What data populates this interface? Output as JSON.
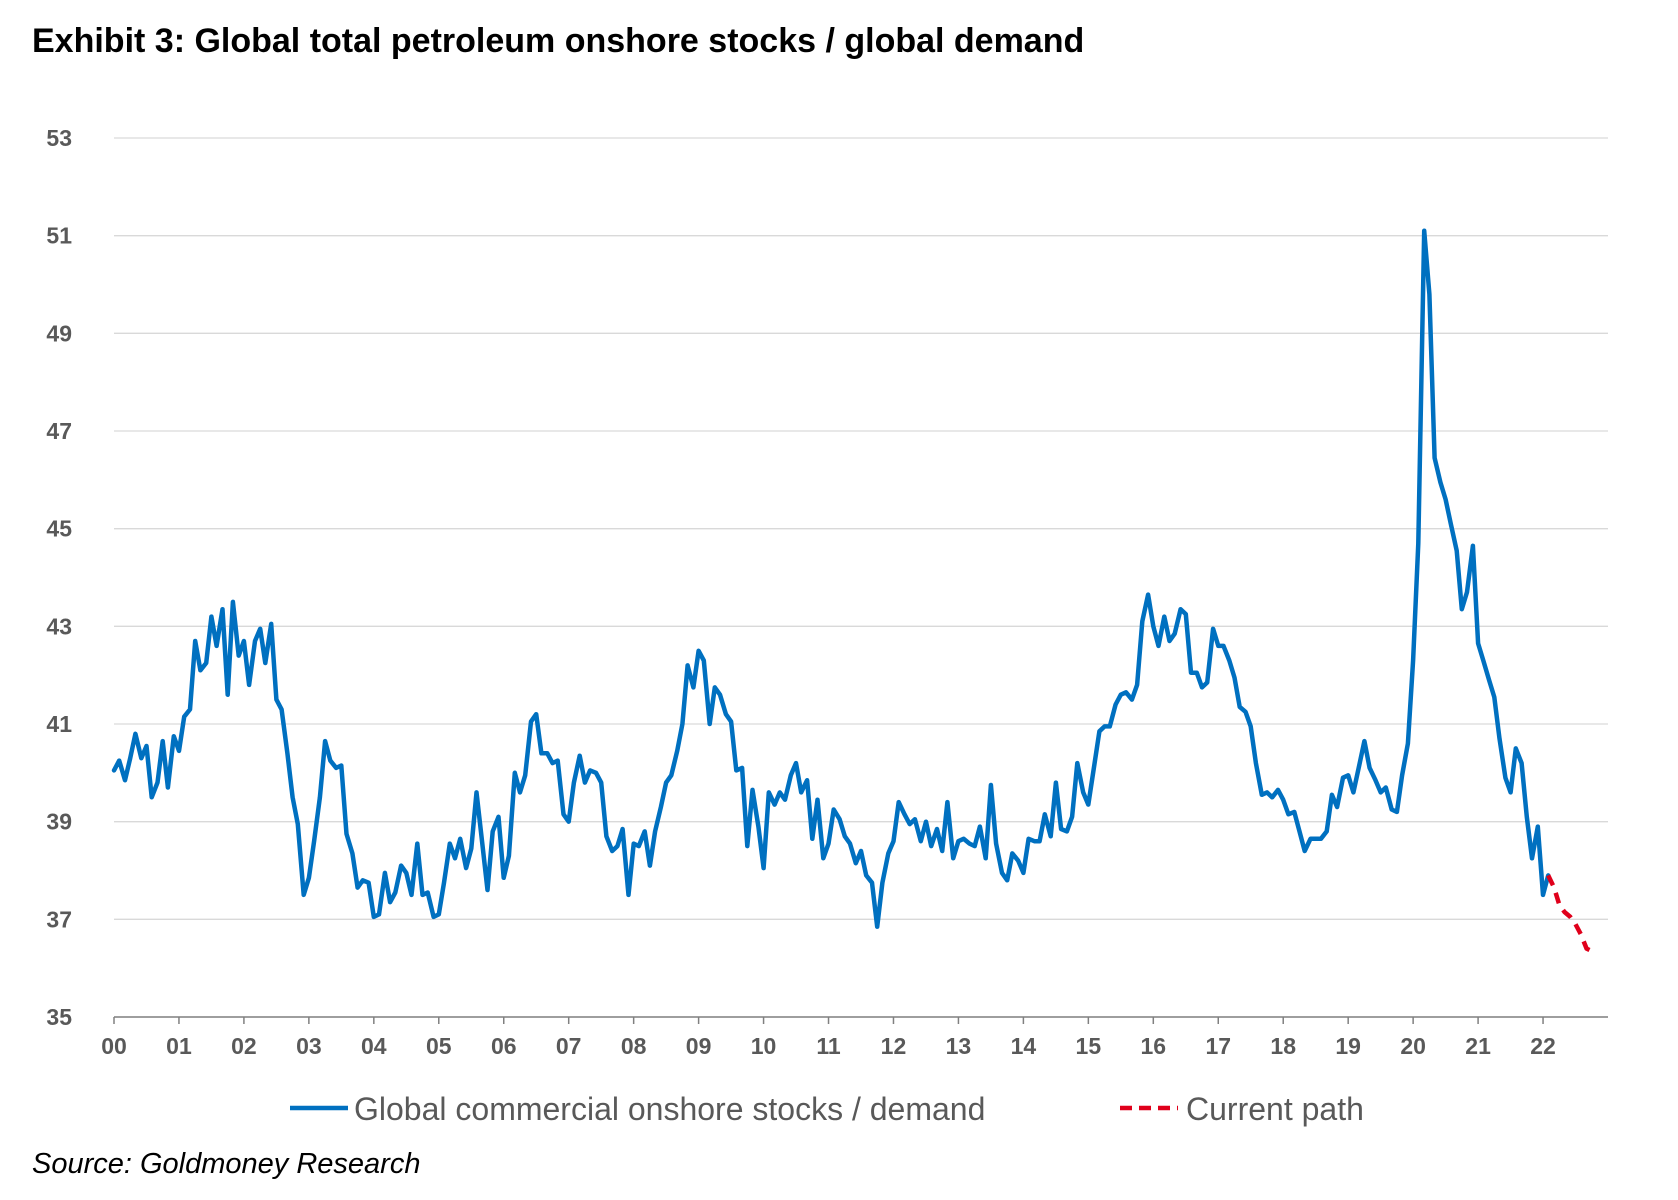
{
  "title": "Exhibit 3: Global total petroleum onshore stocks / global demand",
  "source": "Source: Goldmoney Research",
  "colors": {
    "series1": "#0070C0",
    "series2": "#E0001B",
    "grid": "#d9d9d9",
    "tick_text": "#595959"
  },
  "chart_data": {
    "type": "line",
    "title": "Exhibit 3: Global total petroleum onshore stocks / global demand",
    "xlabel": "",
    "ylabel": "",
    "ylim": [
      35,
      53
    ],
    "xlim": [
      0,
      23
    ],
    "yticks": [
      35,
      37,
      39,
      41,
      43,
      45,
      47,
      49,
      51,
      53
    ],
    "xticks": [
      "00",
      "01",
      "02",
      "03",
      "04",
      "05",
      "06",
      "07",
      "08",
      "09",
      "10",
      "11",
      "12",
      "13",
      "14",
      "15",
      "16",
      "17",
      "18",
      "19",
      "20",
      "21",
      "22"
    ],
    "grid": "horizontal",
    "legend_position": "bottom",
    "series": [
      {
        "name": "Global commercial onshore stocks / demand",
        "style": "solid",
        "color": "#0070C0",
        "points": [
          [
            0.0,
            40.05
          ],
          [
            0.08,
            40.25
          ],
          [
            0.17,
            39.85
          ],
          [
            0.25,
            40.3
          ],
          [
            0.33,
            40.8
          ],
          [
            0.42,
            40.3
          ],
          [
            0.5,
            40.55
          ],
          [
            0.58,
            39.5
          ],
          [
            0.67,
            39.8
          ],
          [
            0.75,
            40.65
          ],
          [
            0.83,
            39.7
          ],
          [
            0.92,
            40.75
          ],
          [
            1.0,
            40.45
          ],
          [
            1.08,
            41.15
          ],
          [
            1.17,
            41.3
          ],
          [
            1.25,
            42.7
          ],
          [
            1.33,
            42.1
          ],
          [
            1.42,
            42.25
          ],
          [
            1.5,
            43.2
          ],
          [
            1.58,
            42.6
          ],
          [
            1.67,
            43.35
          ],
          [
            1.75,
            41.6
          ],
          [
            1.83,
            43.5
          ],
          [
            1.92,
            42.4
          ],
          [
            2.0,
            42.7
          ],
          [
            2.08,
            41.8
          ],
          [
            2.17,
            42.7
          ],
          [
            2.25,
            42.95
          ],
          [
            2.33,
            42.25
          ],
          [
            2.42,
            43.05
          ],
          [
            2.5,
            41.5
          ],
          [
            2.58,
            41.3
          ],
          [
            2.67,
            40.4
          ],
          [
            2.75,
            39.5
          ],
          [
            2.83,
            38.95
          ],
          [
            2.92,
            37.5
          ],
          [
            3.0,
            37.85
          ],
          [
            3.08,
            38.6
          ],
          [
            3.17,
            39.5
          ],
          [
            3.25,
            40.65
          ],
          [
            3.33,
            40.25
          ],
          [
            3.42,
            40.1
          ],
          [
            3.5,
            40.15
          ],
          [
            3.58,
            38.75
          ],
          [
            3.67,
            38.35
          ],
          [
            3.75,
            37.65
          ],
          [
            3.83,
            37.8
          ],
          [
            3.92,
            37.75
          ],
          [
            4.0,
            37.05
          ],
          [
            4.08,
            37.1
          ],
          [
            4.17,
            37.95
          ],
          [
            4.25,
            37.35
          ],
          [
            4.33,
            37.55
          ],
          [
            4.42,
            38.1
          ],
          [
            4.5,
            37.95
          ],
          [
            4.58,
            37.5
          ],
          [
            4.67,
            38.55
          ],
          [
            4.75,
            37.5
          ],
          [
            4.83,
            37.55
          ],
          [
            4.92,
            37.05
          ],
          [
            5.0,
            37.1
          ],
          [
            5.08,
            37.75
          ],
          [
            5.17,
            38.55
          ],
          [
            5.25,
            38.25
          ],
          [
            5.33,
            38.65
          ],
          [
            5.42,
            38.05
          ],
          [
            5.5,
            38.45
          ],
          [
            5.58,
            39.6
          ],
          [
            5.67,
            38.55
          ],
          [
            5.75,
            37.6
          ],
          [
            5.83,
            38.8
          ],
          [
            5.92,
            39.1
          ],
          [
            6.0,
            37.85
          ],
          [
            6.08,
            38.3
          ],
          [
            6.17,
            40.0
          ],
          [
            6.25,
            39.6
          ],
          [
            6.33,
            39.95
          ],
          [
            6.42,
            41.05
          ],
          [
            6.5,
            41.2
          ],
          [
            6.58,
            40.4
          ],
          [
            6.67,
            40.4
          ],
          [
            6.75,
            40.2
          ],
          [
            6.83,
            40.25
          ],
          [
            6.92,
            39.15
          ],
          [
            7.0,
            39.0
          ],
          [
            7.08,
            39.8
          ],
          [
            7.17,
            40.35
          ],
          [
            7.25,
            39.8
          ],
          [
            7.33,
            40.05
          ],
          [
            7.42,
            40.0
          ],
          [
            7.5,
            39.8
          ],
          [
            7.58,
            38.7
          ],
          [
            7.67,
            38.4
          ],
          [
            7.75,
            38.5
          ],
          [
            7.83,
            38.85
          ],
          [
            7.92,
            37.5
          ],
          [
            8.0,
            38.55
          ],
          [
            8.08,
            38.5
          ],
          [
            8.17,
            38.8
          ],
          [
            8.25,
            38.1
          ],
          [
            8.33,
            38.8
          ],
          [
            8.42,
            39.3
          ],
          [
            8.5,
            39.8
          ],
          [
            8.58,
            39.95
          ],
          [
            8.67,
            40.45
          ],
          [
            8.75,
            41.0
          ],
          [
            8.83,
            42.2
          ],
          [
            8.92,
            41.75
          ],
          [
            9.0,
            42.5
          ],
          [
            9.08,
            42.3
          ],
          [
            9.17,
            41.0
          ],
          [
            9.25,
            41.75
          ],
          [
            9.33,
            41.6
          ],
          [
            9.42,
            41.2
          ],
          [
            9.5,
            41.05
          ],
          [
            9.58,
            40.05
          ],
          [
            9.67,
            40.1
          ],
          [
            9.75,
            38.5
          ],
          [
            9.83,
            39.65
          ],
          [
            9.92,
            38.9
          ],
          [
            10.0,
            38.05
          ],
          [
            10.08,
            39.6
          ],
          [
            10.17,
            39.35
          ],
          [
            10.25,
            39.6
          ],
          [
            10.33,
            39.45
          ],
          [
            10.42,
            39.95
          ],
          [
            10.5,
            40.2
          ],
          [
            10.58,
            39.6
          ],
          [
            10.67,
            39.85
          ],
          [
            10.75,
            38.65
          ],
          [
            10.83,
            39.45
          ],
          [
            10.92,
            38.25
          ],
          [
            11.0,
            38.55
          ],
          [
            11.08,
            39.25
          ],
          [
            11.17,
            39.05
          ],
          [
            11.25,
            38.7
          ],
          [
            11.33,
            38.55
          ],
          [
            11.42,
            38.15
          ],
          [
            11.5,
            38.4
          ],
          [
            11.58,
            37.9
          ],
          [
            11.67,
            37.75
          ],
          [
            11.75,
            36.85
          ],
          [
            11.83,
            37.75
          ],
          [
            11.92,
            38.35
          ],
          [
            12.0,
            38.6
          ],
          [
            12.08,
            39.4
          ],
          [
            12.17,
            39.15
          ],
          [
            12.25,
            38.95
          ],
          [
            12.33,
            39.05
          ],
          [
            12.42,
            38.6
          ],
          [
            12.5,
            39.0
          ],
          [
            12.58,
            38.5
          ],
          [
            12.67,
            38.85
          ],
          [
            12.75,
            38.4
          ],
          [
            12.83,
            39.4
          ],
          [
            12.92,
            38.25
          ],
          [
            13.0,
            38.6
          ],
          [
            13.08,
            38.65
          ],
          [
            13.17,
            38.55
          ],
          [
            13.25,
            38.5
          ],
          [
            13.33,
            38.9
          ],
          [
            13.42,
            38.25
          ],
          [
            13.5,
            39.75
          ],
          [
            13.58,
            38.55
          ],
          [
            13.67,
            37.95
          ],
          [
            13.75,
            37.8
          ],
          [
            13.83,
            38.35
          ],
          [
            13.92,
            38.2
          ],
          [
            14.0,
            37.95
          ],
          [
            14.08,
            38.65
          ],
          [
            14.17,
            38.6
          ],
          [
            14.25,
            38.6
          ],
          [
            14.33,
            39.15
          ],
          [
            14.42,
            38.7
          ],
          [
            14.5,
            39.8
          ],
          [
            14.58,
            38.85
          ],
          [
            14.67,
            38.8
          ],
          [
            14.75,
            39.1
          ],
          [
            14.83,
            40.2
          ],
          [
            14.92,
            39.6
          ],
          [
            15.0,
            39.35
          ],
          [
            15.08,
            40.05
          ],
          [
            15.17,
            40.85
          ],
          [
            15.25,
            40.95
          ],
          [
            15.33,
            40.95
          ],
          [
            15.42,
            41.4
          ],
          [
            15.5,
            41.6
          ],
          [
            15.58,
            41.65
          ],
          [
            15.67,
            41.5
          ],
          [
            15.75,
            41.8
          ],
          [
            15.83,
            43.1
          ],
          [
            15.92,
            43.65
          ],
          [
            16.0,
            43.0
          ],
          [
            16.08,
            42.6
          ],
          [
            16.17,
            43.2
          ],
          [
            16.25,
            42.7
          ],
          [
            16.33,
            42.85
          ],
          [
            16.42,
            43.35
          ],
          [
            16.5,
            43.25
          ],
          [
            16.58,
            42.05
          ],
          [
            16.67,
            42.05
          ],
          [
            16.75,
            41.75
          ],
          [
            16.83,
            41.85
          ],
          [
            16.92,
            42.95
          ],
          [
            17.0,
            42.6
          ],
          [
            17.08,
            42.6
          ],
          [
            17.17,
            42.3
          ],
          [
            17.25,
            41.95
          ],
          [
            17.33,
            41.35
          ],
          [
            17.42,
            41.25
          ],
          [
            17.5,
            40.95
          ],
          [
            17.58,
            40.2
          ],
          [
            17.67,
            39.55
          ],
          [
            17.75,
            39.6
          ],
          [
            17.83,
            39.5
          ],
          [
            17.92,
            39.65
          ],
          [
            18.0,
            39.45
          ],
          [
            18.08,
            39.15
          ],
          [
            18.17,
            39.2
          ],
          [
            18.25,
            38.8
          ],
          [
            18.33,
            38.4
          ],
          [
            18.42,
            38.65
          ],
          [
            18.5,
            38.65
          ],
          [
            18.58,
            38.65
          ],
          [
            18.67,
            38.8
          ],
          [
            18.75,
            39.55
          ],
          [
            18.83,
            39.3
          ],
          [
            18.92,
            39.9
          ],
          [
            19.0,
            39.95
          ],
          [
            19.08,
            39.6
          ],
          [
            19.17,
            40.15
          ],
          [
            19.25,
            40.65
          ],
          [
            19.33,
            40.1
          ],
          [
            19.42,
            39.85
          ],
          [
            19.5,
            39.6
          ],
          [
            19.58,
            39.7
          ],
          [
            19.67,
            39.25
          ],
          [
            19.75,
            39.2
          ],
          [
            19.83,
            39.95
          ],
          [
            19.92,
            40.6
          ],
          [
            20.0,
            42.3
          ],
          [
            20.08,
            44.7
          ],
          [
            20.17,
            51.1
          ],
          [
            20.25,
            49.8
          ],
          [
            20.33,
            46.45
          ],
          [
            20.42,
            45.95
          ],
          [
            20.5,
            45.6
          ],
          [
            20.58,
            45.1
          ],
          [
            20.67,
            44.55
          ],
          [
            20.75,
            43.35
          ],
          [
            20.83,
            43.7
          ],
          [
            20.92,
            44.65
          ],
          [
            21.0,
            42.65
          ],
          [
            21.08,
            42.3
          ],
          [
            21.17,
            41.9
          ],
          [
            21.25,
            41.55
          ],
          [
            21.33,
            40.7
          ],
          [
            21.42,
            39.9
          ],
          [
            21.5,
            39.6
          ],
          [
            21.58,
            40.5
          ],
          [
            21.67,
            40.2
          ],
          [
            21.75,
            39.1
          ],
          [
            21.83,
            38.25
          ],
          [
            21.92,
            38.9
          ],
          [
            22.0,
            37.5
          ],
          [
            22.08,
            37.9
          ]
        ]
      },
      {
        "name": "Current path",
        "style": "dashed",
        "color": "#E0001B",
        "points": [
          [
            22.08,
            37.9
          ],
          [
            22.17,
            37.65
          ],
          [
            22.25,
            37.3
          ],
          [
            22.33,
            37.15
          ],
          [
            22.42,
            37.05
          ],
          [
            22.5,
            36.9
          ],
          [
            22.58,
            36.7
          ],
          [
            22.67,
            36.4
          ],
          [
            22.75,
            36.35
          ]
        ]
      }
    ]
  }
}
